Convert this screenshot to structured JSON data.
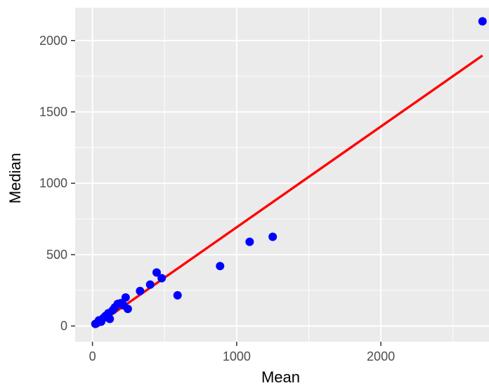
{
  "chart_data": {
    "type": "scatter",
    "title": "",
    "xlabel": "Mean",
    "ylabel": "Median",
    "xlim": [
      -120,
      2750
    ],
    "ylim": [
      -110,
      2230
    ],
    "x_ticks": [
      0,
      1000,
      2000
    ],
    "x_tick_labels": [
      "0",
      "1000",
      "2000"
    ],
    "y_ticks": [
      0,
      500,
      1000,
      1500,
      2000
    ],
    "y_tick_labels": [
      "0",
      "500",
      "1000",
      "1500",
      "2000"
    ],
    "x_minor_ticks": [
      500,
      1500,
      2500
    ],
    "y_minor_ticks": [
      250,
      750,
      1250,
      1750
    ],
    "grid": true,
    "panel_background": "#ebebeb",
    "grid_color": "#ffffff",
    "point_color": "#0000ff",
    "line_color": "#ff0000",
    "points": [
      {
        "x": 20,
        "y": 15
      },
      {
        "x": 30,
        "y": 20
      },
      {
        "x": 45,
        "y": 40
      },
      {
        "x": 60,
        "y": 30
      },
      {
        "x": 75,
        "y": 55
      },
      {
        "x": 90,
        "y": 70
      },
      {
        "x": 110,
        "y": 90
      },
      {
        "x": 120,
        "y": 50
      },
      {
        "x": 140,
        "y": 110
      },
      {
        "x": 155,
        "y": 130
      },
      {
        "x": 175,
        "y": 155
      },
      {
        "x": 195,
        "y": 160
      },
      {
        "x": 215,
        "y": 145
      },
      {
        "x": 230,
        "y": 200
      },
      {
        "x": 245,
        "y": 120
      },
      {
        "x": 330,
        "y": 245
      },
      {
        "x": 400,
        "y": 290
      },
      {
        "x": 445,
        "y": 375
      },
      {
        "x": 480,
        "y": 335
      },
      {
        "x": 590,
        "y": 215
      },
      {
        "x": 885,
        "y": 420
      },
      {
        "x": 1090,
        "y": 590
      },
      {
        "x": 1250,
        "y": 625
      },
      {
        "x": 2705,
        "y": 2135
      }
    ],
    "fit_line": {
      "x": [
        20,
        2705
      ],
      "y": [
        0,
        1895
      ]
    }
  }
}
